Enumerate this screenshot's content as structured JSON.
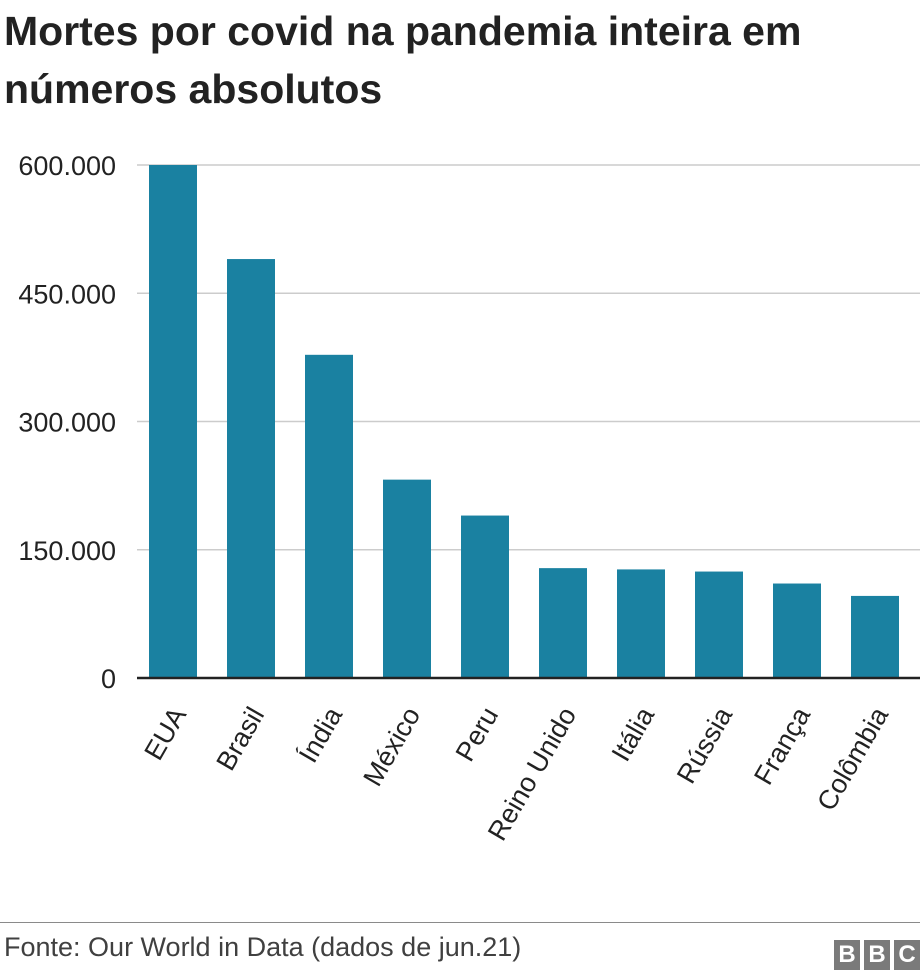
{
  "chart_data": {
    "type": "bar",
    "title": "Mortes por covid na pandemia inteira em números absolutos",
    "categories": [
      "EUA",
      "Brasil",
      "Índia",
      "México",
      "Peru",
      "Reino Unido",
      "Itália",
      "Rússia",
      "França",
      "Colômbia"
    ],
    "values": [
      600000,
      490000,
      378000,
      232000,
      190000,
      128500,
      127000,
      124500,
      110500,
      96000
    ],
    "yticks": [
      "0",
      "150.000",
      "300.000",
      "450.000",
      "600.000"
    ],
    "ylim": [
      0,
      600000
    ],
    "xlabel": "",
    "ylabel": "",
    "grid": true,
    "colors": {
      "bar": "#1a81a1",
      "grid": "#cccccc",
      "axis": "#222222"
    }
  },
  "footer": {
    "source": "Fonte: Our World in Data (dados de jun.21)",
    "logo_letters": [
      "B",
      "B",
      "C"
    ]
  }
}
